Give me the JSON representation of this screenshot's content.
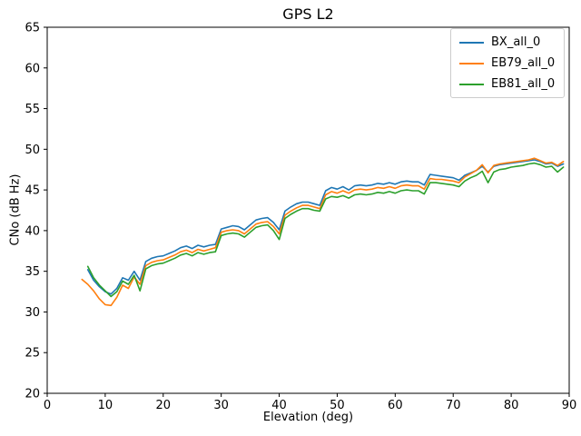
{
  "chart_data": {
    "type": "line",
    "title": "GPS L2",
    "xlabel": "Elevation (deg)",
    "ylabel": "CNo (dB Hz)",
    "xlim": [
      0,
      90
    ],
    "ylim": [
      20,
      65
    ],
    "xticks": [
      0,
      10,
      20,
      30,
      40,
      50,
      60,
      70,
      80,
      90
    ],
    "yticks": [
      20,
      25,
      30,
      35,
      40,
      45,
      50,
      55,
      60,
      65
    ],
    "grid": false,
    "legend_position": "upper right",
    "series": [
      {
        "name": "BX_all_0",
        "color": "#1f77b4",
        "x": [
          7,
          8,
          9,
          10,
          11,
          12,
          13,
          14,
          15,
          16,
          17,
          18,
          19,
          20,
          21,
          22,
          23,
          24,
          25,
          26,
          27,
          28,
          29,
          30,
          31,
          32,
          33,
          34,
          35,
          36,
          37,
          38,
          39,
          40,
          41,
          42,
          43,
          44,
          45,
          46,
          47,
          48,
          49,
          50,
          51,
          52,
          53,
          54,
          55,
          56,
          57,
          58,
          59,
          60,
          61,
          62,
          63,
          64,
          65,
          66,
          67,
          68,
          69,
          70,
          71,
          72,
          73,
          74,
          75,
          76,
          77,
          78,
          79,
          80,
          81,
          82,
          83,
          84,
          85,
          86,
          87,
          88,
          89
        ],
        "y": [
          35.2,
          33.9,
          33.1,
          32.5,
          32.2,
          32.9,
          34.2,
          33.9,
          35.0,
          33.9,
          36.2,
          36.6,
          36.8,
          36.9,
          37.2,
          37.5,
          37.9,
          38.1,
          37.8,
          38.2,
          38.0,
          38.2,
          38.3,
          40.2,
          40.4,
          40.6,
          40.5,
          40.1,
          40.7,
          41.3,
          41.5,
          41.6,
          41.0,
          40.1,
          42.4,
          42.9,
          43.3,
          43.5,
          43.5,
          43.3,
          43.1,
          44.9,
          45.3,
          45.1,
          45.4,
          45.0,
          45.5,
          45.6,
          45.5,
          45.6,
          45.8,
          45.7,
          45.9,
          45.7,
          46.0,
          46.1,
          46.0,
          46.0,
          45.6,
          46.9,
          46.8,
          46.7,
          46.6,
          46.5,
          46.2,
          46.8,
          47.1,
          47.4,
          47.9,
          47.2,
          47.9,
          48.1,
          48.2,
          48.3,
          48.4,
          48.5,
          48.6,
          48.7,
          48.5,
          48.2,
          48.3,
          47.9,
          48.2
        ]
      },
      {
        "name": "EB79_all_0",
        "color": "#ff7f0e",
        "x": [
          6,
          7,
          8,
          9,
          10,
          11,
          12,
          13,
          14,
          15,
          16,
          17,
          18,
          19,
          20,
          21,
          22,
          23,
          24,
          25,
          26,
          27,
          28,
          29,
          30,
          31,
          32,
          33,
          34,
          35,
          36,
          37,
          38,
          39,
          40,
          41,
          42,
          43,
          44,
          45,
          46,
          47,
          48,
          49,
          50,
          51,
          52,
          53,
          54,
          55,
          56,
          57,
          58,
          59,
          60,
          61,
          62,
          63,
          64,
          65,
          66,
          67,
          68,
          69,
          70,
          71,
          72,
          73,
          74,
          75,
          76,
          77,
          78,
          79,
          80,
          81,
          82,
          83,
          84,
          85,
          86,
          87,
          88,
          89
        ],
        "y": [
          34.0,
          33.4,
          32.6,
          31.6,
          30.9,
          30.8,
          31.8,
          33.3,
          32.9,
          34.3,
          33.4,
          35.7,
          36.1,
          36.3,
          36.4,
          36.7,
          37.0,
          37.4,
          37.6,
          37.3,
          37.7,
          37.5,
          37.7,
          37.9,
          39.8,
          40.0,
          40.1,
          40.0,
          39.6,
          40.2,
          40.8,
          41.0,
          41.1,
          40.5,
          39.6,
          41.9,
          42.4,
          42.8,
          43.1,
          43.1,
          42.9,
          42.7,
          44.4,
          44.8,
          44.6,
          44.9,
          44.6,
          45.0,
          45.1,
          45.0,
          45.1,
          45.3,
          45.2,
          45.4,
          45.2,
          45.5,
          45.6,
          45.5,
          45.5,
          45.1,
          46.4,
          46.3,
          46.3,
          46.2,
          46.1,
          45.9,
          46.6,
          47.0,
          47.4,
          48.1,
          47.1,
          48.0,
          48.2,
          48.3,
          48.4,
          48.5,
          48.6,
          48.7,
          48.9,
          48.6,
          48.3,
          48.4,
          48.0,
          48.5
        ]
      },
      {
        "name": "EB81_all_0",
        "color": "#2ca02c",
        "x": [
          7,
          8,
          9,
          10,
          11,
          12,
          13,
          14,
          15,
          16,
          17,
          18,
          19,
          20,
          21,
          22,
          23,
          24,
          25,
          26,
          27,
          28,
          29,
          30,
          31,
          32,
          33,
          34,
          35,
          36,
          37,
          38,
          39,
          40,
          41,
          42,
          43,
          44,
          45,
          46,
          47,
          48,
          49,
          50,
          51,
          52,
          53,
          54,
          55,
          56,
          57,
          58,
          59,
          60,
          61,
          62,
          63,
          64,
          65,
          66,
          67,
          68,
          69,
          70,
          71,
          72,
          73,
          74,
          75,
          76,
          77,
          78,
          79,
          80,
          81,
          82,
          83,
          84,
          85,
          86,
          87,
          88,
          89
        ],
        "y": [
          35.6,
          34.2,
          33.3,
          32.6,
          31.9,
          32.5,
          33.8,
          33.4,
          34.5,
          32.6,
          35.3,
          35.7,
          35.9,
          36.0,
          36.3,
          36.6,
          37.0,
          37.2,
          36.9,
          37.3,
          37.1,
          37.3,
          37.4,
          39.4,
          39.6,
          39.7,
          39.6,
          39.2,
          39.8,
          40.4,
          40.6,
          40.7,
          40.0,
          38.9,
          41.5,
          42.0,
          42.4,
          42.7,
          42.7,
          42.5,
          42.4,
          43.9,
          44.2,
          44.1,
          44.3,
          44.0,
          44.4,
          44.5,
          44.4,
          44.5,
          44.7,
          44.6,
          44.8,
          44.6,
          44.9,
          45.0,
          44.9,
          44.9,
          44.5,
          45.9,
          45.9,
          45.8,
          45.7,
          45.6,
          45.4,
          46.1,
          46.5,
          46.8,
          47.3,
          45.9,
          47.2,
          47.5,
          47.6,
          47.8,
          47.9,
          48.0,
          48.2,
          48.3,
          48.1,
          47.8,
          47.9,
          47.2,
          47.8
        ]
      }
    ]
  }
}
